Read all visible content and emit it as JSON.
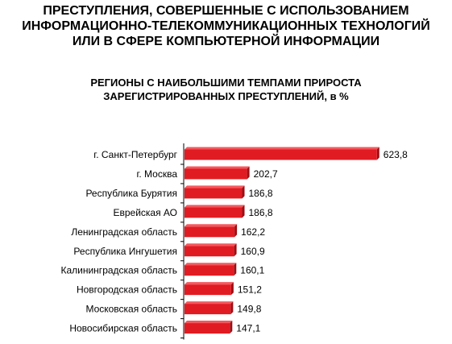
{
  "title_lines": [
    "ПРЕСТУПЛЕНИЯ, СОВЕРШЕННЫЕ С ИСПОЛЬЗОВАНИЕМ",
    "ИНФОРМАЦИОННО-ТЕЛЕКОММУНИКАЦИОННЫХ ТЕХНОЛОГИЙ",
    "ИЛИ В СФЕРЕ  КОМПЬЮТЕРНОЙ ИНФОРМАЦИИ"
  ],
  "subtitle_lines": [
    "РЕГИОНЫ С НАИБОЛЬШИМИ ТЕМПАМИ ПРИРОСТА",
    "ЗАРЕГИСТРИРОВАННЫХ ПРЕСТУПЛЕНИЙ, в %"
  ],
  "colors": {
    "bar_fill": "#e11b22",
    "bar_top": "#f4585d",
    "bar_side": "#9c0e14",
    "axis": "#000000"
  },
  "chart_data": {
    "type": "bar",
    "orientation": "horizontal",
    "categories": [
      "г. Санкт-Петербург",
      "г. Москва",
      "Республика Бурятия",
      "Еврейская АО",
      "Ленинградская область",
      "Республика Ингушетия",
      "Калининградская область",
      "Новгородская  область",
      "Московская область",
      "Новосибирская область"
    ],
    "values": [
      623.8,
      202.7,
      186.8,
      186.8,
      162.2,
      160.9,
      160.1,
      151.2,
      149.8,
      147.1
    ],
    "value_labels": [
      "623,8",
      "202,7",
      "186,8",
      "186,8",
      "162,2",
      "160,9",
      "160,1",
      "151,2",
      "149,8",
      "147,1"
    ],
    "xlim": [
      0,
      640
    ],
    "grid": false,
    "legend": "none"
  }
}
